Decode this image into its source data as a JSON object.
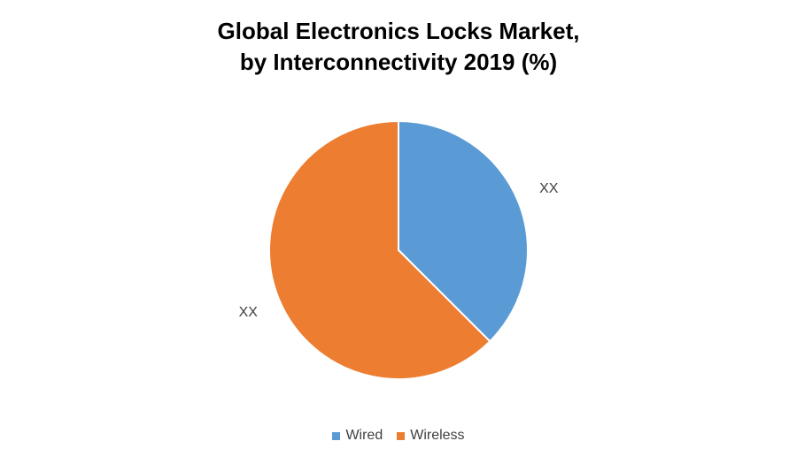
{
  "chart_data": {
    "type": "pie",
    "title_lines": [
      "Global Electronics Locks Market,",
      "by Interconnectivity 2019 (%)"
    ],
    "slices": [
      {
        "name": "Wired",
        "value": 37.5,
        "label": "XX",
        "color": "#5B9BD5"
      },
      {
        "name": "Wireless",
        "value": 62.5,
        "label": "XX",
        "color": "#ED7D31"
      }
    ],
    "start_angle_deg": 0,
    "direction": "clockwise",
    "legend_position": "bottom"
  }
}
